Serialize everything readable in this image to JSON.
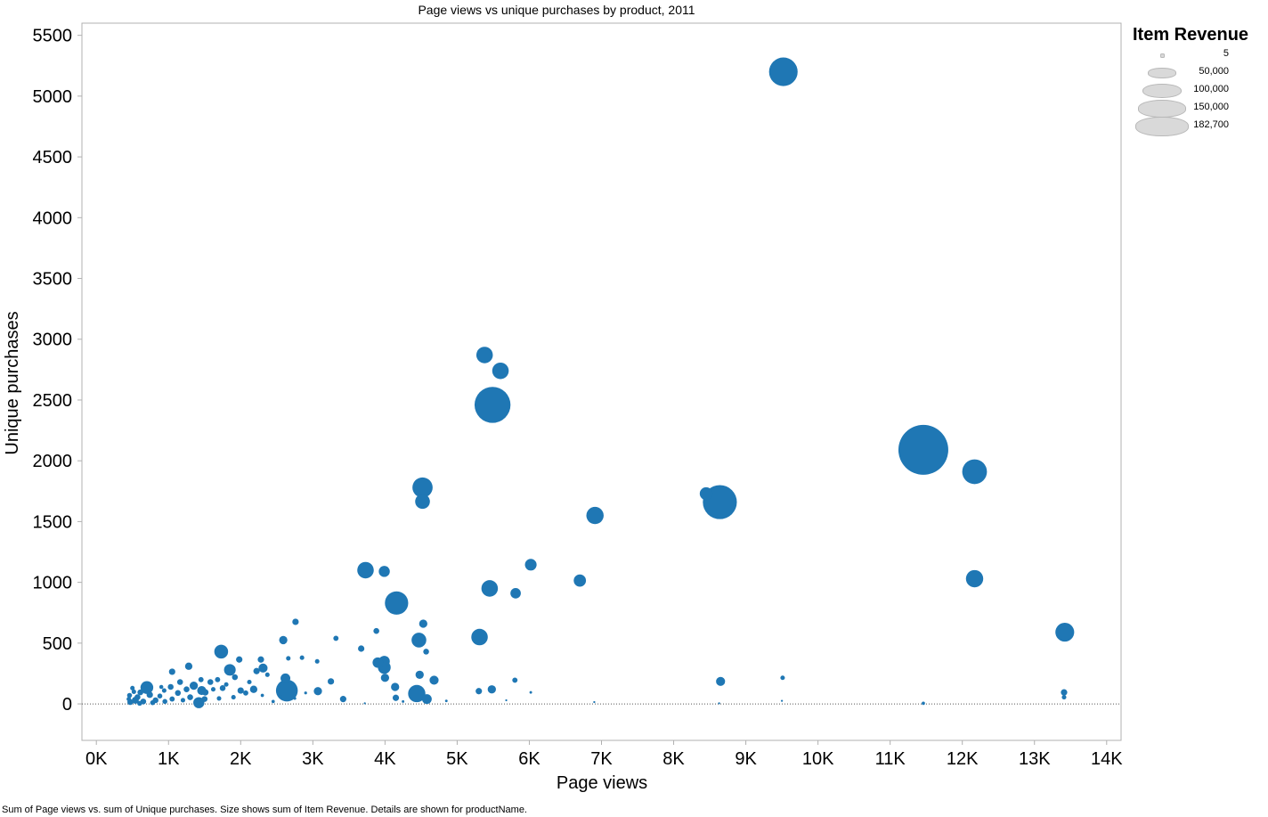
{
  "chart_data": {
    "type": "scatter",
    "title": "Page views vs unique purchases by product, 2011",
    "xlabel": "Page views",
    "ylabel": "Unique purchases",
    "xlim": [
      -200,
      14200
    ],
    "ylim": [
      -300,
      5600
    ],
    "x_ticks": [
      0,
      1000,
      2000,
      3000,
      4000,
      5000,
      6000,
      7000,
      8000,
      9000,
      10000,
      11000,
      12000,
      13000,
      14000
    ],
    "x_tick_labels": [
      "0K",
      "1K",
      "2K",
      "3K",
      "4K",
      "5K",
      "6K",
      "7K",
      "8K",
      "9K",
      "10K",
      "11K",
      "12K",
      "13K",
      "14K"
    ],
    "y_ticks": [
      0,
      500,
      1000,
      1500,
      2000,
      2500,
      3000,
      3500,
      4000,
      4500,
      5000,
      5500
    ],
    "y_tick_labels": [
      "0",
      "500",
      "1000",
      "1500",
      "2000",
      "2500",
      "3000",
      "3500",
      "4000",
      "4500",
      "5000",
      "5500"
    ],
    "size_field": "Item Revenue",
    "size_max": 182700,
    "color": "#1f77b4",
    "points": [
      {
        "x": 9520,
        "y": 5200,
        "size": 60000
      },
      {
        "x": 11460,
        "y": 2090,
        "size": 182700
      },
      {
        "x": 12170,
        "y": 1910,
        "size": 45000
      },
      {
        "x": 12170,
        "y": 1030,
        "size": 22000
      },
      {
        "x": 13420,
        "y": 590,
        "size": 26000
      },
      {
        "x": 13410,
        "y": 95,
        "size": 3000
      },
      {
        "x": 13410,
        "y": 55,
        "size": 1500
      },
      {
        "x": 8640,
        "y": 1660,
        "size": 85000
      },
      {
        "x": 8450,
        "y": 1730,
        "size": 12000
      },
      {
        "x": 8650,
        "y": 185,
        "size": 6000
      },
      {
        "x": 9510,
        "y": 215,
        "size": 1500
      },
      {
        "x": 5490,
        "y": 2460,
        "size": 95000
      },
      {
        "x": 5380,
        "y": 2870,
        "size": 20000
      },
      {
        "x": 5600,
        "y": 2740,
        "size": 20000
      },
      {
        "x": 4520,
        "y": 1780,
        "size": 30000
      },
      {
        "x": 4520,
        "y": 1665,
        "size": 16000
      },
      {
        "x": 6910,
        "y": 1550,
        "size": 22000
      },
      {
        "x": 6020,
        "y": 1145,
        "size": 10000
      },
      {
        "x": 6700,
        "y": 1015,
        "size": 11000
      },
      {
        "x": 5450,
        "y": 950,
        "size": 20000
      },
      {
        "x": 5810,
        "y": 910,
        "size": 8000
      },
      {
        "x": 4160,
        "y": 830,
        "size": 40000
      },
      {
        "x": 3730,
        "y": 1100,
        "size": 20000
      },
      {
        "x": 3990,
        "y": 1090,
        "size": 9000
      },
      {
        "x": 5310,
        "y": 550,
        "size": 20000
      },
      {
        "x": 4470,
        "y": 525,
        "size": 16000
      },
      {
        "x": 4530,
        "y": 660,
        "size": 5000
      },
      {
        "x": 4570,
        "y": 430,
        "size": 2500
      },
      {
        "x": 3990,
        "y": 300,
        "size": 12000
      },
      {
        "x": 3990,
        "y": 350,
        "size": 9000
      },
      {
        "x": 3900,
        "y": 340,
        "size": 8000
      },
      {
        "x": 4440,
        "y": 85,
        "size": 22000
      },
      {
        "x": 4480,
        "y": 240,
        "size": 5000
      },
      {
        "x": 4680,
        "y": 195,
        "size": 6000
      },
      {
        "x": 4140,
        "y": 140,
        "size": 5000
      },
      {
        "x": 4000,
        "y": 215,
        "size": 5000
      },
      {
        "x": 3880,
        "y": 600,
        "size": 2500
      },
      {
        "x": 3670,
        "y": 455,
        "size": 3000
      },
      {
        "x": 4580,
        "y": 40,
        "size": 7000
      },
      {
        "x": 4150,
        "y": 50,
        "size": 3000
      },
      {
        "x": 5480,
        "y": 120,
        "size": 5000
      },
      {
        "x": 5300,
        "y": 105,
        "size": 3000
      },
      {
        "x": 5800,
        "y": 195,
        "size": 2000
      },
      {
        "x": 6020,
        "y": 95,
        "size": 500
      },
      {
        "x": 2640,
        "y": 110,
        "size": 35000
      },
      {
        "x": 2620,
        "y": 210,
        "size": 7000
      },
      {
        "x": 2590,
        "y": 525,
        "size": 5000
      },
      {
        "x": 2760,
        "y": 675,
        "size": 3000
      },
      {
        "x": 3070,
        "y": 105,
        "size": 5000
      },
      {
        "x": 3250,
        "y": 185,
        "size": 3000
      },
      {
        "x": 3320,
        "y": 540,
        "size": 2000
      },
      {
        "x": 3420,
        "y": 40,
        "size": 3000
      },
      {
        "x": 3060,
        "y": 350,
        "size": 1500
      },
      {
        "x": 2850,
        "y": 380,
        "size": 1500
      },
      {
        "x": 2660,
        "y": 375,
        "size": 1500
      },
      {
        "x": 1730,
        "y": 430,
        "size": 14000
      },
      {
        "x": 1850,
        "y": 280,
        "size": 10000
      },
      {
        "x": 2310,
        "y": 295,
        "size": 6000
      },
      {
        "x": 2280,
        "y": 365,
        "size": 3000
      },
      {
        "x": 2180,
        "y": 120,
        "size": 4000
      },
      {
        "x": 2000,
        "y": 110,
        "size": 3000
      },
      {
        "x": 2220,
        "y": 270,
        "size": 3000
      },
      {
        "x": 1980,
        "y": 365,
        "size": 3000
      },
      {
        "x": 1920,
        "y": 220,
        "size": 2500
      },
      {
        "x": 1750,
        "y": 130,
        "size": 2500
      },
      {
        "x": 2070,
        "y": 90,
        "size": 2000
      },
      {
        "x": 2370,
        "y": 240,
        "size": 1500
      },
      {
        "x": 2120,
        "y": 180,
        "size": 1500
      },
      {
        "x": 1280,
        "y": 310,
        "size": 4000
      },
      {
        "x": 1050,
        "y": 265,
        "size": 3000
      },
      {
        "x": 1350,
        "y": 150,
        "size": 5000
      },
      {
        "x": 1460,
        "y": 110,
        "size": 6000
      },
      {
        "x": 1420,
        "y": 10,
        "size": 9000
      },
      {
        "x": 1510,
        "y": 95,
        "size": 3000
      },
      {
        "x": 1580,
        "y": 180,
        "size": 2500
      },
      {
        "x": 1160,
        "y": 180,
        "size": 2500
      },
      {
        "x": 1250,
        "y": 120,
        "size": 2500
      },
      {
        "x": 1130,
        "y": 90,
        "size": 2500
      },
      {
        "x": 1030,
        "y": 140,
        "size": 2500
      },
      {
        "x": 1450,
        "y": 200,
        "size": 2000
      },
      {
        "x": 1680,
        "y": 200,
        "size": 2000
      },
      {
        "x": 1300,
        "y": 55,
        "size": 2500
      },
      {
        "x": 1500,
        "y": 40,
        "size": 2500
      },
      {
        "x": 1700,
        "y": 45,
        "size": 1500
      },
      {
        "x": 1900,
        "y": 55,
        "size": 1500
      },
      {
        "x": 1200,
        "y": 30,
        "size": 1500
      },
      {
        "x": 1050,
        "y": 40,
        "size": 2000
      },
      {
        "x": 1620,
        "y": 120,
        "size": 1500
      },
      {
        "x": 1800,
        "y": 160,
        "size": 1500
      },
      {
        "x": 940,
        "y": 110,
        "size": 1500
      },
      {
        "x": 700,
        "y": 135,
        "size": 12000
      },
      {
        "x": 740,
        "y": 75,
        "size": 3000
      },
      {
        "x": 820,
        "y": 30,
        "size": 2500
      },
      {
        "x": 610,
        "y": 95,
        "size": 2500
      },
      {
        "x": 540,
        "y": 30,
        "size": 3500
      },
      {
        "x": 470,
        "y": 15,
        "size": 2500
      },
      {
        "x": 460,
        "y": 70,
        "size": 1800
      },
      {
        "x": 500,
        "y": 130,
        "size": 1500
      },
      {
        "x": 570,
        "y": 55,
        "size": 2500
      },
      {
        "x": 650,
        "y": 20,
        "size": 2500
      },
      {
        "x": 880,
        "y": 65,
        "size": 1800
      },
      {
        "x": 950,
        "y": 20,
        "size": 1800
      },
      {
        "x": 780,
        "y": 10,
        "size": 1800
      },
      {
        "x": 600,
        "y": 5,
        "size": 1800
      },
      {
        "x": 520,
        "y": 100,
        "size": 1500
      },
      {
        "x": 450,
        "y": 40,
        "size": 1500
      },
      {
        "x": 900,
        "y": 140,
        "size": 1200
      },
      {
        "x": 2450,
        "y": 20,
        "size": 800
      },
      {
        "x": 2300,
        "y": 70,
        "size": 800
      },
      {
        "x": 2550,
        "y": 60,
        "size": 800
      },
      {
        "x": 2750,
        "y": 45,
        "size": 600
      },
      {
        "x": 2900,
        "y": 90,
        "size": 600
      },
      {
        "x": 3720,
        "y": 5,
        "size": 300
      },
      {
        "x": 4250,
        "y": 20,
        "size": 500
      },
      {
        "x": 4850,
        "y": 25,
        "size": 500
      },
      {
        "x": 5680,
        "y": 30,
        "size": 300
      },
      {
        "x": 6900,
        "y": 15,
        "size": 300
      },
      {
        "x": 8630,
        "y": 5,
        "size": 300
      },
      {
        "x": 9500,
        "y": 25,
        "size": 300
      },
      {
        "x": 11460,
        "y": 5,
        "size": 800
      }
    ]
  },
  "legend": {
    "title": "Item Revenue",
    "items": [
      "5",
      "50,000",
      "100,000",
      "150,000",
      "182,700"
    ],
    "values": [
      5,
      50000,
      100000,
      150000,
      182700
    ]
  },
  "footer": {
    "note": "Sum of Page views vs. sum of Unique purchases.  Size shows sum of Item Revenue.  Details are shown for productName."
  },
  "colors": {
    "mark": "#1f77b4",
    "legend_fill": "#d9d9d9",
    "axis": "#b0b0b0"
  }
}
